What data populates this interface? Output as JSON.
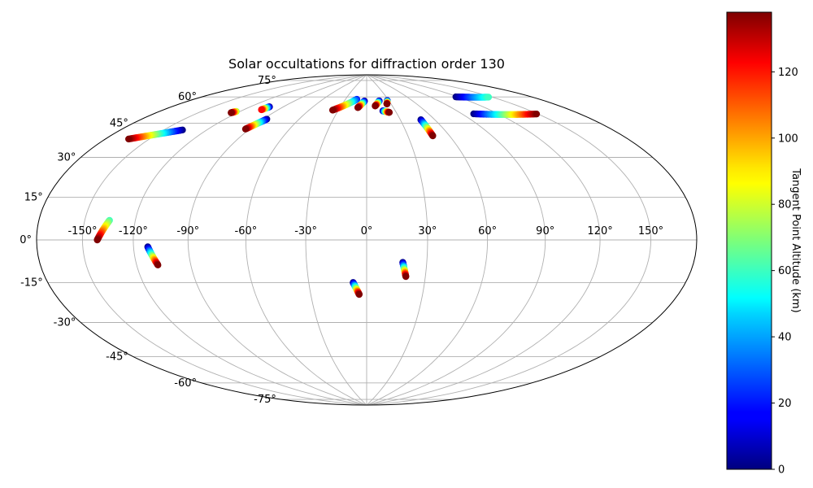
{
  "chart_data": {
    "type": "scatter",
    "projection": "hammer",
    "title": "Solar occultations for diffraction order 130",
    "colorbar": {
      "label": "Tangent Point Altitude (km)",
      "min": 0,
      "max": 138,
      "ticks": [
        0,
        20,
        40,
        60,
        80,
        100,
        120
      ],
      "tick_labels": [
        "0",
        "20",
        "40",
        "60",
        "80",
        "100",
        "120"
      ],
      "colormap": "jet"
    },
    "lon_tick_labels": [
      {
        "lon": -150,
        "label": "-150°"
      },
      {
        "lon": -120,
        "label": "-120°"
      },
      {
        "lon": -90,
        "label": "-90°"
      },
      {
        "lon": -60,
        "label": "-60°"
      },
      {
        "lon": -30,
        "label": "-30°"
      },
      {
        "lon": 0,
        "label": "0°"
      },
      {
        "lon": 30,
        "label": "30°"
      },
      {
        "lon": 60,
        "label": "60°"
      },
      {
        "lon": 90,
        "label": "90°"
      },
      {
        "lon": 120,
        "label": "120°"
      },
      {
        "lon": 150,
        "label": "150°"
      }
    ],
    "lat_tick_labels": [
      {
        "lat": 75,
        "label": "75°"
      },
      {
        "lat": 60,
        "label": "60°"
      },
      {
        "lat": 45,
        "label": "45°"
      },
      {
        "lat": 30,
        "label": "30°"
      },
      {
        "lat": 15,
        "label": "15°"
      },
      {
        "lat": 0,
        "label": "0°"
      },
      {
        "lat": -15,
        "label": "-15°"
      },
      {
        "lat": -30,
        "label": "-30°"
      },
      {
        "lat": -45,
        "label": "-45°"
      },
      {
        "lat": -60,
        "label": "-60°"
      },
      {
        "lat": -75,
        "label": "-75°"
      }
    ],
    "occultations": [
      {
        "lon_start": -137,
        "lat_start": 48,
        "lon_end": -164,
        "lat_end": 40,
        "alt_start": 0,
        "alt_end": 138
      },
      {
        "lon_start": -135,
        "lat_start": 8,
        "lon_end": -141,
        "lat_end": 0,
        "alt_start": 60,
        "alt_end": 138
      },
      {
        "lon_start": -112,
        "lat_start": -3,
        "lon_end": -108,
        "lat_end": -11,
        "alt_start": 0,
        "alt_end": 138
      },
      {
        "lon_start": -123,
        "lat_start": 60,
        "lon_end": -125,
        "lat_end": 59,
        "alt_start": 70,
        "alt_end": 138
      },
      {
        "lon_start": -103,
        "lat_start": 65,
        "lon_end": -105,
        "lat_end": 63,
        "alt_start": 0,
        "alt_end": 120
      },
      {
        "lon_start": -87,
        "lat_start": 59,
        "lon_end": -93,
        "lat_end": 53,
        "alt_start": 0,
        "alt_end": 138
      },
      {
        "lon_start": -14,
        "lat_start": 74,
        "lon_end": -36,
        "lat_end": 67,
        "alt_start": 20,
        "alt_end": 138
      },
      {
        "lon_start": -3,
        "lat_start": 73,
        "lon_end": -10,
        "lat_end": 69,
        "alt_start": 0,
        "alt_end": 138
      },
      {
        "lon_start": 17,
        "lat_start": 73,
        "lon_end": 10,
        "lat_end": 70,
        "alt_start": 0,
        "alt_end": 138
      },
      {
        "lon_start": 17,
        "lat_start": 67,
        "lon_end": 23,
        "lat_end": 66,
        "alt_start": 0,
        "alt_end": 138
      },
      {
        "lon_start": 28,
        "lat_start": 73,
        "lon_end": 25,
        "lat_end": 71,
        "alt_start": 0,
        "alt_end": 138
      },
      {
        "lon_start": 48,
        "lat_start": 61,
        "lon_end": 48,
        "lat_end": 52,
        "alt_start": 0,
        "alt_end": 138
      },
      {
        "lon_start": 100,
        "lat_start": 61,
        "lon_end": 149,
        "lat_end": 55,
        "alt_start": 0,
        "alt_end": 138
      },
      {
        "lon_start": 118,
        "lat_start": 70,
        "lon_end": 147,
        "lat_end": 66,
        "alt_start": 0,
        "alt_end": 60
      },
      {
        "lon_start": -7,
        "lat_start": -21,
        "lon_end": -4,
        "lat_end": -27,
        "alt_start": 0,
        "alt_end": 138
      },
      {
        "lon_start": 18,
        "lat_start": -11,
        "lon_end": 20,
        "lat_end": -18,
        "alt_start": 0,
        "alt_end": 138
      }
    ]
  }
}
